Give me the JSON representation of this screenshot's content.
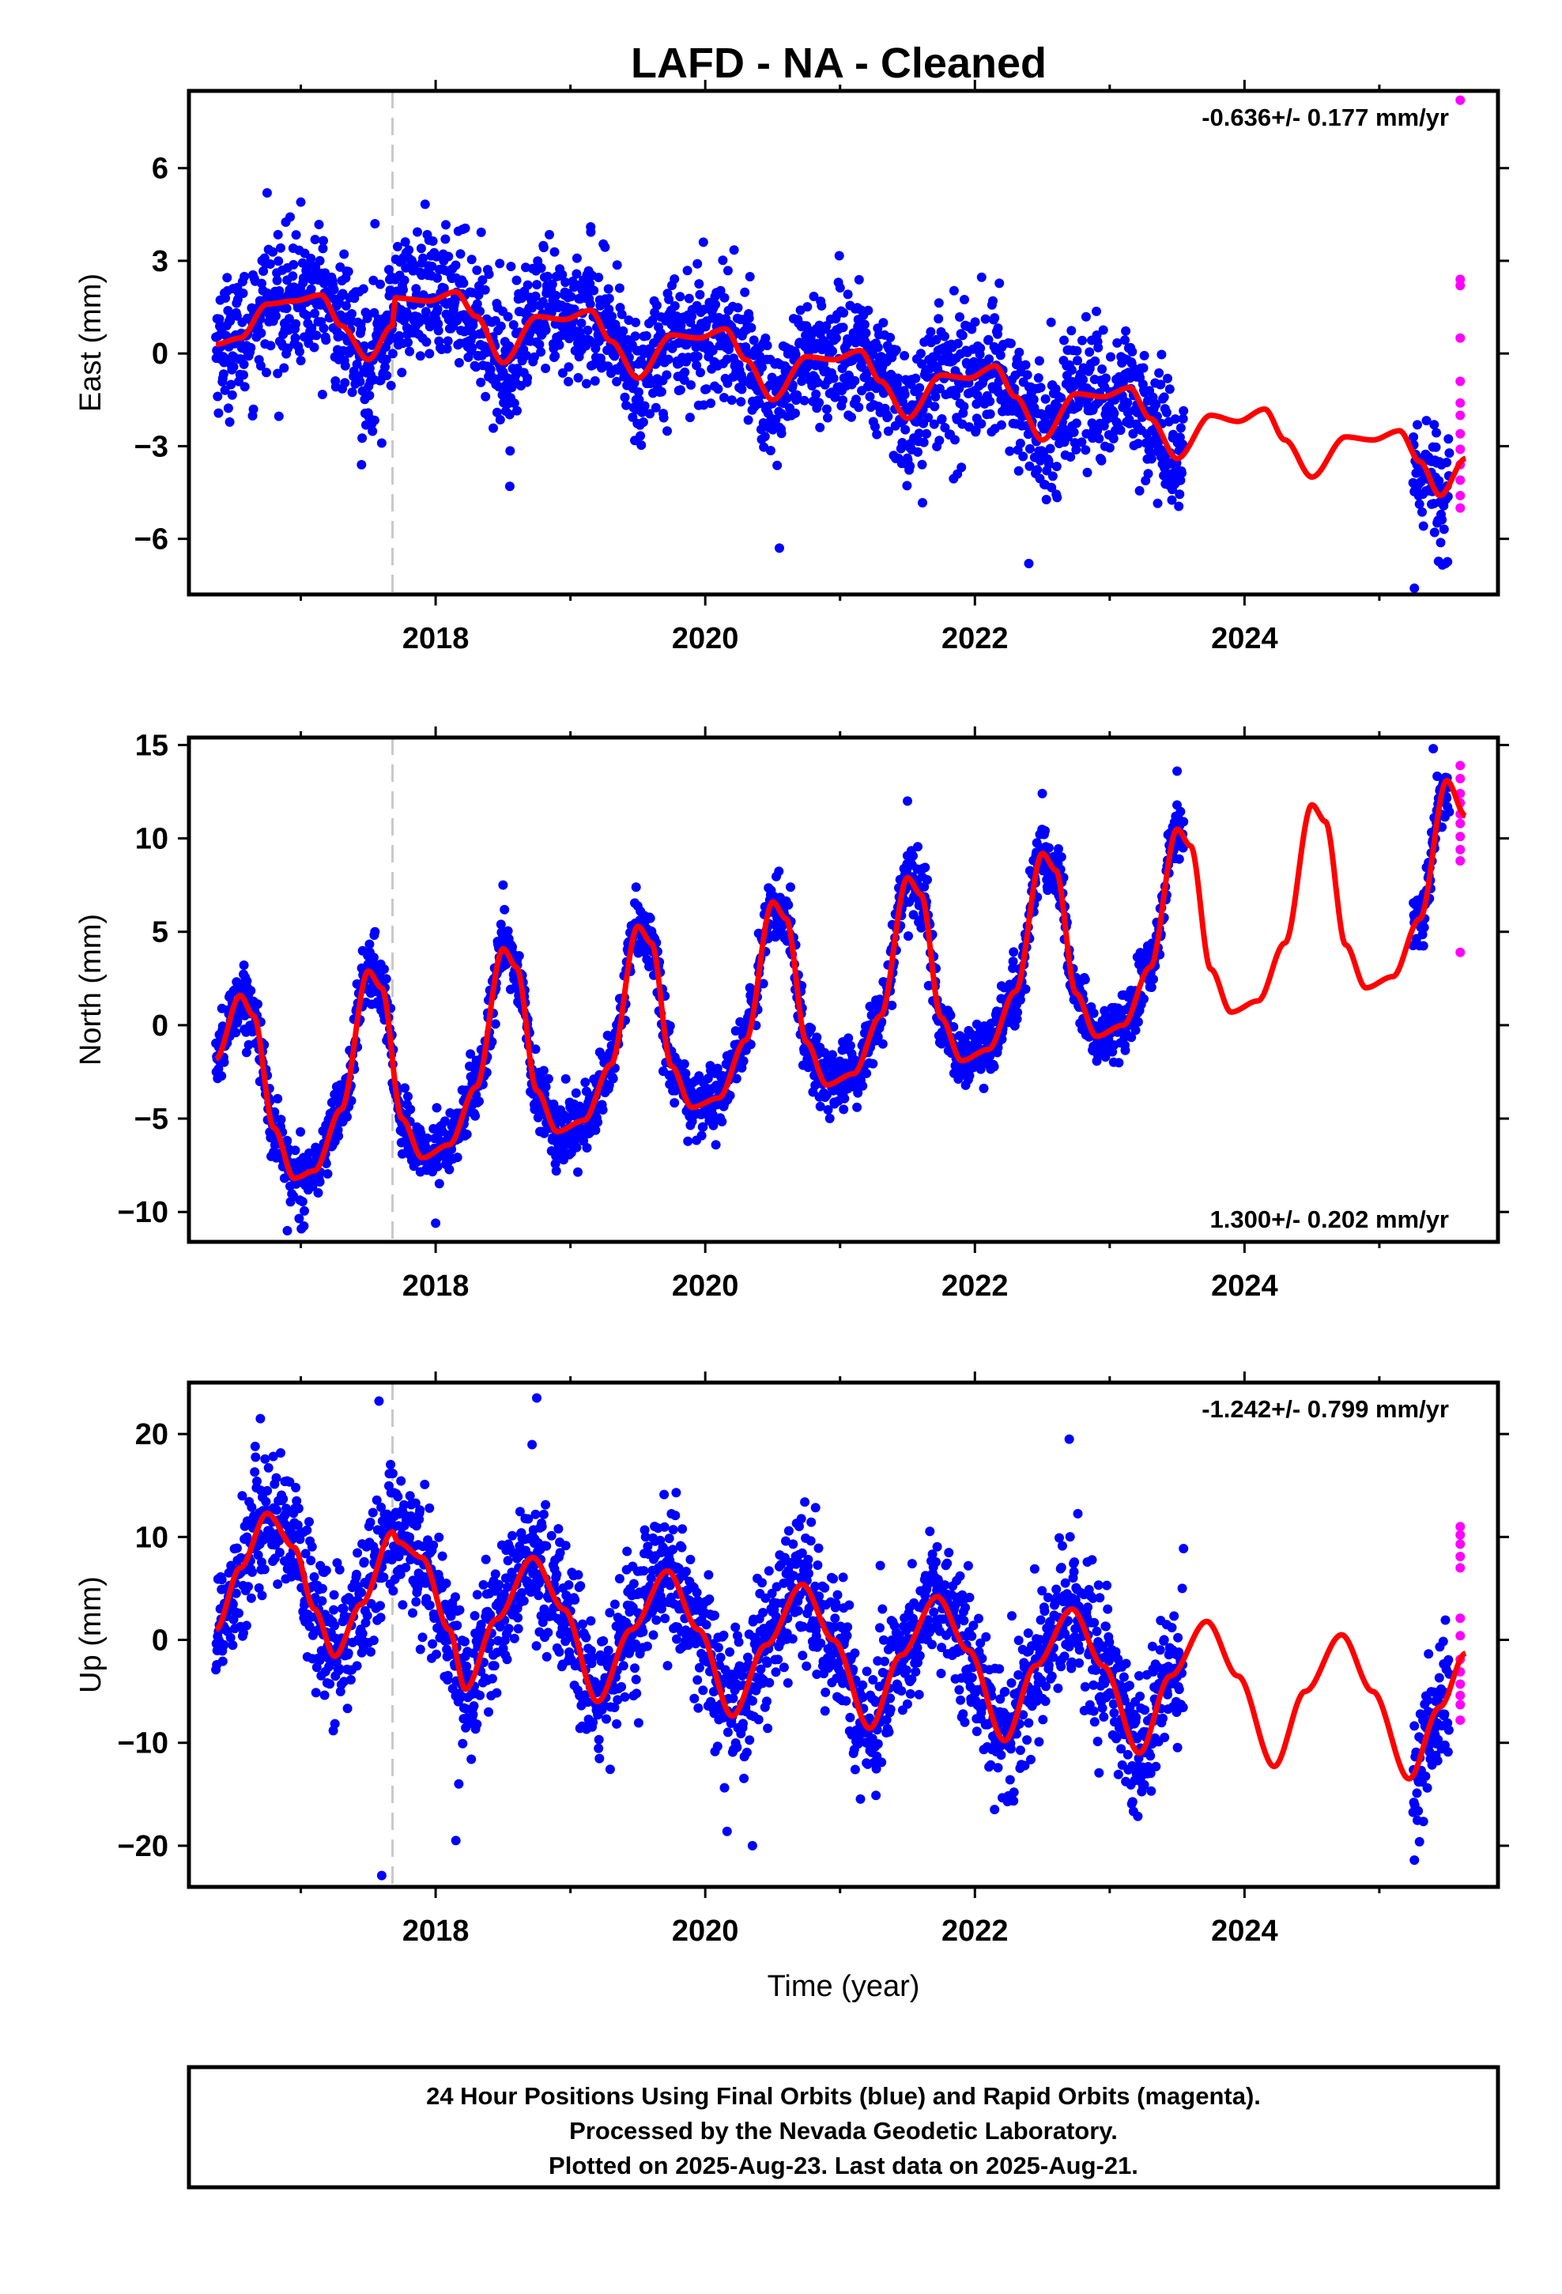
{
  "title": "LAFD  - NA - Cleaned",
  "footer": {
    "line1": "24 Hour Positions Using Final Orbits (blue) and Rapid Orbits (magenta).",
    "line2": "Processed by the Nevada Geodetic Laboratory.",
    "line3": "Plotted on 2025-Aug-23. Last data on 2025-Aug-21."
  },
  "colors": {
    "final_orbits": "#0000ff",
    "rapid_orbits": "#ff00ff",
    "model": "#ff0000",
    "equipment_change": "#c8c8c8"
  },
  "chart_data": [
    {
      "type": "scatter",
      "id": "east",
      "ylabel": "East (mm)",
      "xlabel": "",
      "rate_text": "-0.636+/- 0.177 mm/yr",
      "rate_position": "top-right",
      "xlim": [
        2016.17,
        2025.88
      ],
      "ylim": [
        -7.8,
        8.5
      ],
      "x_ticks": [
        2018,
        2020,
        2022,
        2024
      ],
      "x_minor_ticks": [
        2017,
        2019,
        2021,
        2023,
        2025
      ],
      "y_ticks": [
        -6,
        -3,
        0,
        3,
        6
      ],
      "equipment_change_x": [
        2017.68
      ],
      "final_span": [
        2016.37,
        2023.55
      ],
      "final_span_2": [
        2025.25,
        2025.52
      ],
      "rapid_span": [
        2025.52,
        2025.64
      ],
      "scatter_sd": 1.05,
      "outliers": [
        [
          2016.75,
          5.2
        ],
        [
          2017.0,
          4.9
        ],
        [
          2017.55,
          4.2
        ],
        [
          2019.15,
          4.1
        ],
        [
          2017.6,
          -2.9
        ],
        [
          2017.45,
          -3.6
        ],
        [
          2018.55,
          -4.3
        ],
        [
          2020.55,
          -6.3
        ],
        [
          2022.4,
          -6.8
        ],
        [
          2025.26,
          -7.6
        ]
      ],
      "model": {
        "points": [
          [
            2016.37,
            0.3
          ],
          [
            2016.55,
            0.5
          ],
          [
            2016.75,
            1.6
          ],
          [
            2016.95,
            1.7
          ],
          [
            2017.15,
            1.9
          ],
          [
            2017.3,
            0.9
          ],
          [
            2017.5,
            -0.2
          ],
          [
            2017.68,
            0.9
          ],
          [
            2017.7,
            1.8
          ],
          [
            2017.95,
            1.7
          ],
          [
            2018.15,
            2.0
          ],
          [
            2018.3,
            1.2
          ],
          [
            2018.5,
            -0.3
          ],
          [
            2018.75,
            1.2
          ],
          [
            2018.95,
            1.1
          ],
          [
            2019.15,
            1.4
          ],
          [
            2019.3,
            0.4
          ],
          [
            2019.5,
            -0.8
          ],
          [
            2019.75,
            0.6
          ],
          [
            2019.95,
            0.5
          ],
          [
            2020.15,
            0.8
          ],
          [
            2020.3,
            -0.2
          ],
          [
            2020.5,
            -1.5
          ],
          [
            2020.75,
            -0.1
          ],
          [
            2020.95,
            -0.2
          ],
          [
            2021.15,
            0.1
          ],
          [
            2021.3,
            -0.9
          ],
          [
            2021.5,
            -2.1
          ],
          [
            2021.75,
            -0.7
          ],
          [
            2021.95,
            -0.8
          ],
          [
            2022.15,
            -0.4
          ],
          [
            2022.3,
            -1.4
          ],
          [
            2022.5,
            -2.8
          ],
          [
            2022.75,
            -1.3
          ],
          [
            2022.95,
            -1.4
          ],
          [
            2023.15,
            -1.1
          ],
          [
            2023.3,
            -2.1
          ],
          [
            2023.5,
            -3.4
          ],
          [
            2023.75,
            -2.0
          ],
          [
            2023.95,
            -2.2
          ],
          [
            2024.15,
            -1.8
          ],
          [
            2024.3,
            -2.8
          ],
          [
            2024.5,
            -4.0
          ],
          [
            2024.75,
            -2.7
          ],
          [
            2024.95,
            -2.8
          ],
          [
            2025.15,
            -2.5
          ],
          [
            2025.3,
            -3.5
          ],
          [
            2025.45,
            -4.6
          ],
          [
            2025.64,
            -3.4
          ]
        ]
      },
      "rapid_points": [
        [
          2025.6,
          8.2
        ],
        [
          2025.6,
          2.4
        ],
        [
          2025.6,
          2.2
        ],
        [
          2025.6,
          0.5
        ],
        [
          2025.6,
          -0.9
        ],
        [
          2025.6,
          -1.6
        ],
        [
          2025.6,
          -2.0
        ],
        [
          2025.6,
          -2.6
        ],
        [
          2025.6,
          -3.1
        ],
        [
          2025.6,
          -3.6
        ],
        [
          2025.6,
          -4.1
        ],
        [
          2025.6,
          -4.6
        ],
        [
          2025.6,
          -5.0
        ]
      ]
    },
    {
      "type": "scatter",
      "id": "north",
      "ylabel": "North (mm)",
      "xlabel": "",
      "rate_text": "1.300+/- 0.202 mm/yr",
      "rate_position": "bottom-right",
      "xlim": [
        2016.17,
        2025.88
      ],
      "ylim": [
        -11.6,
        15.4
      ],
      "x_ticks": [
        2018,
        2020,
        2022,
        2024
      ],
      "x_minor_ticks": [
        2017,
        2019,
        2021,
        2023,
        2025
      ],
      "y_ticks": [
        -10,
        -5,
        0,
        5,
        10,
        15
      ],
      "equipment_change_x": [
        2017.68
      ],
      "final_span": [
        2016.37,
        2023.55
      ],
      "final_span_2": [
        2025.25,
        2025.52
      ],
      "rapid_span": [
        2025.52,
        2025.64
      ],
      "scatter_sd": 0.85,
      "outliers": [
        [
          2016.9,
          -11.0
        ],
        [
          2018.0,
          -10.6
        ],
        [
          2017.55,
          5.0
        ],
        [
          2018.5,
          7.5
        ],
        [
          2021.5,
          12.0
        ],
        [
          2022.5,
          12.4
        ],
        [
          2023.5,
          13.6
        ],
        [
          2025.4,
          14.8
        ]
      ],
      "model": {
        "points": [
          [
            2016.37,
            -1.8
          ],
          [
            2016.55,
            1.6
          ],
          [
            2016.65,
            0.5
          ],
          [
            2016.8,
            -5.5
          ],
          [
            2016.95,
            -8.2
          ],
          [
            2017.1,
            -7.8
          ],
          [
            2017.3,
            -4.5
          ],
          [
            2017.5,
            2.9
          ],
          [
            2017.6,
            2.0
          ],
          [
            2017.75,
            -5.0
          ],
          [
            2017.9,
            -7.1
          ],
          [
            2018.1,
            -6.4
          ],
          [
            2018.3,
            -3.3
          ],
          [
            2018.5,
            4.1
          ],
          [
            2018.6,
            3.1
          ],
          [
            2018.75,
            -3.5
          ],
          [
            2018.9,
            -5.7
          ],
          [
            2019.1,
            -5.1
          ],
          [
            2019.3,
            -2.1
          ],
          [
            2019.5,
            5.3
          ],
          [
            2019.6,
            4.4
          ],
          [
            2019.75,
            -2.2
          ],
          [
            2019.9,
            -4.4
          ],
          [
            2020.1,
            -3.9
          ],
          [
            2020.3,
            -0.8
          ],
          [
            2020.5,
            6.6
          ],
          [
            2020.6,
            5.7
          ],
          [
            2020.75,
            -0.9
          ],
          [
            2020.9,
            -3.2
          ],
          [
            2021.1,
            -2.6
          ],
          [
            2021.3,
            0.5
          ],
          [
            2021.5,
            7.9
          ],
          [
            2021.6,
            7.0
          ],
          [
            2021.75,
            0.4
          ],
          [
            2021.9,
            -1.9
          ],
          [
            2022.1,
            -1.3
          ],
          [
            2022.3,
            1.8
          ],
          [
            2022.5,
            9.2
          ],
          [
            2022.6,
            8.3
          ],
          [
            2022.75,
            1.7
          ],
          [
            2022.9,
            -0.6
          ],
          [
            2023.1,
            0.0
          ],
          [
            2023.3,
            3.1
          ],
          [
            2023.5,
            10.5
          ],
          [
            2023.6,
            9.6
          ],
          [
            2023.75,
            3.0
          ],
          [
            2023.9,
            0.7
          ],
          [
            2024.1,
            1.3
          ],
          [
            2024.3,
            4.4
          ],
          [
            2024.5,
            11.8
          ],
          [
            2024.6,
            10.9
          ],
          [
            2024.75,
            4.3
          ],
          [
            2024.9,
            2.0
          ],
          [
            2025.1,
            2.6
          ],
          [
            2025.3,
            5.7
          ],
          [
            2025.5,
            13.1
          ],
          [
            2025.64,
            11.2
          ]
        ]
      },
      "rapid_points": [
        [
          2025.6,
          13.9
        ],
        [
          2025.6,
          13.2
        ],
        [
          2025.6,
          12.4
        ],
        [
          2025.6,
          11.9
        ],
        [
          2025.6,
          11.3
        ],
        [
          2025.6,
          10.8
        ],
        [
          2025.6,
          10.1
        ],
        [
          2025.6,
          9.4
        ],
        [
          2025.6,
          8.8
        ],
        [
          2025.6,
          3.9
        ]
      ]
    },
    {
      "type": "scatter",
      "id": "up",
      "ylabel": "Up (mm)",
      "xlabel": "Time (year)",
      "rate_text": "-1.242+/- 0.799 mm/yr",
      "rate_position": "top-right",
      "xlim": [
        2016.17,
        2025.88
      ],
      "ylim": [
        -24.0,
        25.0
      ],
      "x_ticks": [
        2018,
        2020,
        2022,
        2024
      ],
      "x_minor_ticks": [
        2017,
        2019,
        2021,
        2023,
        2025
      ],
      "y_ticks": [
        -20,
        -10,
        0,
        10,
        20
      ],
      "equipment_change_x": [
        2017.68
      ],
      "final_span": [
        2016.37,
        2023.55
      ],
      "final_span_2": [
        2025.25,
        2025.52
      ],
      "rapid_span": [
        2025.52,
        2025.64
      ],
      "scatter_sd": 3.4,
      "outliers": [
        [
          2017.6,
          -22.9
        ],
        [
          2017.58,
          23.2
        ],
        [
          2018.75,
          23.5
        ],
        [
          2016.7,
          21.5
        ],
        [
          2022.7,
          19.5
        ],
        [
          2025.26,
          -21.4
        ],
        [
          2018.15,
          -19.5
        ],
        [
          2020.35,
          -20.0
        ]
      ],
      "model": {
        "points": [
          [
            2016.37,
            1.0
          ],
          [
            2016.55,
            7.0
          ],
          [
            2016.75,
            12.3
          ],
          [
            2016.95,
            9.0
          ],
          [
            2017.1,
            3.0
          ],
          [
            2017.25,
            -1.6
          ],
          [
            2017.45,
            3.5
          ],
          [
            2017.68,
            10.5
          ],
          [
            2017.72,
            9.5
          ],
          [
            2017.9,
            8.0
          ],
          [
            2018.1,
            1.0
          ],
          [
            2018.22,
            -4.8
          ],
          [
            2018.45,
            2.0
          ],
          [
            2018.72,
            8.0
          ],
          [
            2018.95,
            3.0
          ],
          [
            2019.2,
            -6.0
          ],
          [
            2019.45,
            1.0
          ],
          [
            2019.72,
            6.7
          ],
          [
            2019.95,
            1.0
          ],
          [
            2020.2,
            -7.4
          ],
          [
            2020.45,
            -0.5
          ],
          [
            2020.72,
            5.4
          ],
          [
            2020.95,
            0.0
          ],
          [
            2021.22,
            -8.6
          ],
          [
            2021.45,
            -1.5
          ],
          [
            2021.72,
            4.2
          ],
          [
            2021.95,
            -1.0
          ],
          [
            2022.22,
            -9.8
          ],
          [
            2022.45,
            -2.5
          ],
          [
            2022.72,
            3.0
          ],
          [
            2022.95,
            -2.5
          ],
          [
            2023.22,
            -11.0
          ],
          [
            2023.45,
            -3.5
          ],
          [
            2023.72,
            1.8
          ],
          [
            2023.95,
            -3.5
          ],
          [
            2024.22,
            -12.3
          ],
          [
            2024.45,
            -5.0
          ],
          [
            2024.72,
            0.5
          ],
          [
            2024.95,
            -5.0
          ],
          [
            2025.22,
            -13.5
          ],
          [
            2025.45,
            -6.5
          ],
          [
            2025.64,
            -1.3
          ]
        ]
      },
      "rapid_points": [
        [
          2025.6,
          11.0
        ],
        [
          2025.6,
          10.2
        ],
        [
          2025.6,
          9.3
        ],
        [
          2025.6,
          8.1
        ],
        [
          2025.6,
          7.0
        ],
        [
          2025.6,
          2.1
        ],
        [
          2025.6,
          0.4
        ],
        [
          2025.6,
          -1.9
        ],
        [
          2025.6,
          -3.1
        ],
        [
          2025.6,
          -4.3
        ],
        [
          2025.6,
          -5.4
        ],
        [
          2025.6,
          -6.3
        ],
        [
          2025.6,
          -7.8
        ]
      ]
    }
  ]
}
